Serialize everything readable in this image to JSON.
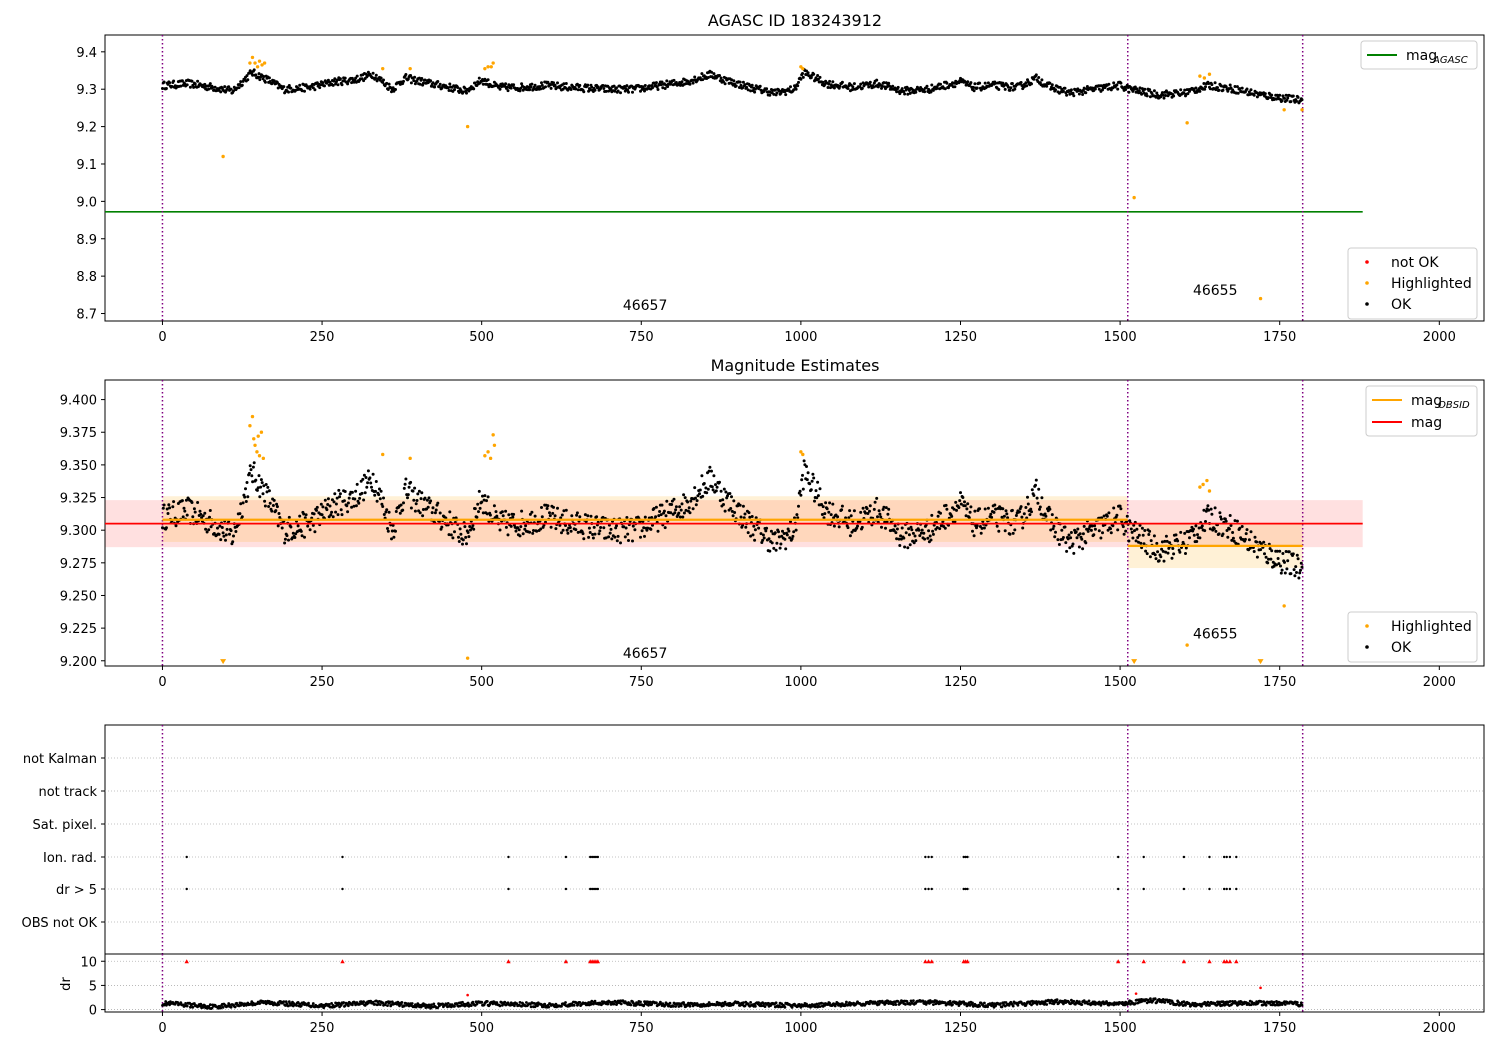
{
  "colors": {
    "ok": "#000000",
    "highlighted": "#ffa500",
    "not_ok": "#ff0000",
    "mag_agasc": "#008000",
    "mag_obsid": "#ffa500",
    "mag": "#ff0000",
    "obsid_line": "#800080"
  },
  "chart_data": [
    {
      "type": "scatter",
      "title": "AGASC ID 183243912",
      "xlim": [
        -90,
        2070
      ],
      "ylim": [
        8.68,
        9.445
      ],
      "x_ticks": [
        0,
        250,
        500,
        750,
        1000,
        1250,
        1500,
        1750,
        2000
      ],
      "y_ticks": [
        {
          "v": 8.7,
          "label": "8.7"
        },
        {
          "v": 8.8,
          "label": "8.8"
        },
        {
          "v": 8.9,
          "label": "8.9"
        },
        {
          "v": 9.0,
          "label": "9.0"
        },
        {
          "v": 9.1,
          "label": "9.1"
        },
        {
          "v": 9.2,
          "label": "9.2"
        },
        {
          "v": 9.3,
          "label": "9.3"
        },
        {
          "v": 9.4,
          "label": "9.4"
        }
      ],
      "obsid_boundaries": [
        0,
        1512,
        1786
      ],
      "obsid_labels": [
        {
          "text": "46657",
          "x": 756,
          "y": 8.71
        },
        {
          "text": "46655",
          "x": 1649,
          "y": 8.75
        }
      ],
      "mag_agasc": {
        "value": 8.972,
        "x": [
          -90,
          1880
        ]
      },
      "legend_lines": [
        {
          "label": "mag",
          "sub": "AGASC",
          "color_key": "mag_agasc"
        }
      ],
      "legend_points": [
        {
          "label": "not OK",
          "color_key": "not_ok"
        },
        {
          "label": "Highlighted",
          "color_key": "highlighted"
        },
        {
          "label": "OK",
          "color_key": "ok"
        }
      ],
      "series": [
        {
          "name": "OK",
          "mag_knots": [
            [
              0,
              9.31
            ],
            [
              40,
              9.315
            ],
            [
              80,
              9.305
            ],
            [
              110,
              9.295
            ],
            [
              140,
              9.345
            ],
            [
              165,
              9.325
            ],
            [
              190,
              9.3
            ],
            [
              230,
              9.305
            ],
            [
              270,
              9.32
            ],
            [
              300,
              9.325
            ],
            [
              330,
              9.34
            ],
            [
              360,
              9.3
            ],
            [
              380,
              9.33
            ],
            [
              420,
              9.315
            ],
            [
              450,
              9.305
            ],
            [
              475,
              9.295
            ],
            [
              500,
              9.325
            ],
            [
              525,
              9.305
            ],
            [
              560,
              9.305
            ],
            [
              600,
              9.31
            ],
            [
              640,
              9.305
            ],
            [
              700,
              9.3
            ],
            [
              740,
              9.3
            ],
            [
              780,
              9.31
            ],
            [
              820,
              9.32
            ],
            [
              860,
              9.34
            ],
            [
              880,
              9.325
            ],
            [
              920,
              9.305
            ],
            [
              960,
              9.29
            ],
            [
              990,
              9.3
            ],
            [
              1005,
              9.345
            ],
            [
              1040,
              9.315
            ],
            [
              1080,
              9.305
            ],
            [
              1120,
              9.315
            ],
            [
              1160,
              9.295
            ],
            [
              1200,
              9.3
            ],
            [
              1250,
              9.32
            ],
            [
              1270,
              9.305
            ],
            [
              1300,
              9.31
            ],
            [
              1340,
              9.305
            ],
            [
              1370,
              9.33
            ],
            [
              1385,
              9.31
            ],
            [
              1420,
              9.29
            ],
            [
              1460,
              9.3
            ],
            [
              1500,
              9.31
            ],
            [
              1515,
              9.3
            ],
            [
              1560,
              9.285
            ],
            [
              1600,
              9.29
            ],
            [
              1640,
              9.31
            ],
            [
              1680,
              9.3
            ],
            [
              1720,
              9.285
            ],
            [
              1760,
              9.275
            ],
            [
              1786,
              9.27
            ]
          ],
          "noise": 0.01
        },
        {
          "name": "Highlighted",
          "points": [
            [
              95,
              9.12
            ],
            [
              137,
              9.37
            ],
            [
              141,
              9.385
            ],
            [
              145,
              9.37
            ],
            [
              149,
              9.36
            ],
            [
              152,
              9.375
            ],
            [
              156,
              9.365
            ],
            [
              160,
              9.37
            ],
            [
              345,
              9.355
            ],
            [
              388,
              9.355
            ],
            [
              478,
              9.2
            ],
            [
              505,
              9.355
            ],
            [
              510,
              9.36
            ],
            [
              515,
              9.36
            ],
            [
              518,
              9.37
            ],
            [
              1000,
              9.36
            ],
            [
              1003,
              9.355
            ],
            [
              1522,
              9.01
            ],
            [
              1605,
              9.21
            ],
            [
              1625,
              9.335
            ],
            [
              1632,
              9.33
            ],
            [
              1640,
              9.34
            ],
            [
              1720,
              8.74
            ],
            [
              1757,
              9.245
            ],
            [
              1785,
              9.245
            ]
          ]
        }
      ]
    },
    {
      "type": "scatter",
      "title": "Magnitude Estimates",
      "xlim": [
        -90,
        2070
      ],
      "ylim": [
        9.196,
        9.415
      ],
      "x_ticks": [
        0,
        250,
        500,
        750,
        1000,
        1250,
        1500,
        1750,
        2000
      ],
      "y_ticks": [
        {
          "v": 9.2,
          "label": "9.200"
        },
        {
          "v": 9.225,
          "label": "9.225"
        },
        {
          "v": 9.25,
          "label": "9.250"
        },
        {
          "v": 9.275,
          "label": "9.275"
        },
        {
          "v": 9.3,
          "label": "9.300"
        },
        {
          "v": 9.325,
          "label": "9.325"
        },
        {
          "v": 9.35,
          "label": "9.350"
        },
        {
          "v": 9.375,
          "label": "9.375"
        },
        {
          "v": 9.4,
          "label": "9.400"
        }
      ],
      "obsid_boundaries": [
        0,
        1512,
        1786
      ],
      "obsid_labels": [
        {
          "text": "46657",
          "x": 756,
          "y": 9.202
        },
        {
          "text": "46655",
          "x": 1649,
          "y": 9.217
        }
      ],
      "mag": {
        "value": 9.305,
        "band": [
          9.287,
          9.323
        ],
        "x": [
          -90,
          1880
        ]
      },
      "mag_obsid": [
        {
          "x": [
            0,
            1512
          ],
          "value": 9.308,
          "band": [
            9.291,
            9.326
          ]
        },
        {
          "x": [
            1512,
            1786
          ],
          "value": 9.288,
          "band": [
            9.271,
            9.305
          ]
        }
      ],
      "legend_lines": [
        {
          "label": "mag",
          "sub": "OBSID",
          "color_key": "mag_obsid"
        },
        {
          "label": "mag",
          "sub": "",
          "color_key": "mag"
        }
      ],
      "legend_points": [
        {
          "label": "Highlighted",
          "color_key": "highlighted"
        },
        {
          "label": "OK",
          "color_key": "ok"
        }
      ],
      "series": [
        {
          "name": "OK",
          "mag_knots": [
            [
              0,
              9.31
            ],
            [
              40,
              9.315
            ],
            [
              80,
              9.305
            ],
            [
              110,
              9.295
            ],
            [
              140,
              9.345
            ],
            [
              165,
              9.325
            ],
            [
              190,
              9.3
            ],
            [
              230,
              9.305
            ],
            [
              270,
              9.32
            ],
            [
              300,
              9.325
            ],
            [
              330,
              9.34
            ],
            [
              360,
              9.3
            ],
            [
              380,
              9.33
            ],
            [
              420,
              9.315
            ],
            [
              450,
              9.305
            ],
            [
              475,
              9.295
            ],
            [
              500,
              9.325
            ],
            [
              525,
              9.305
            ],
            [
              560,
              9.305
            ],
            [
              600,
              9.31
            ],
            [
              640,
              9.305
            ],
            [
              700,
              9.3
            ],
            [
              740,
              9.3
            ],
            [
              780,
              9.31
            ],
            [
              820,
              9.32
            ],
            [
              860,
              9.34
            ],
            [
              880,
              9.325
            ],
            [
              920,
              9.305
            ],
            [
              960,
              9.29
            ],
            [
              990,
              9.3
            ],
            [
              1005,
              9.345
            ],
            [
              1040,
              9.315
            ],
            [
              1080,
              9.305
            ],
            [
              1120,
              9.315
            ],
            [
              1160,
              9.295
            ],
            [
              1200,
              9.3
            ],
            [
              1250,
              9.32
            ],
            [
              1270,
              9.305
            ],
            [
              1300,
              9.31
            ],
            [
              1340,
              9.305
            ],
            [
              1370,
              9.33
            ],
            [
              1385,
              9.31
            ],
            [
              1420,
              9.29
            ],
            [
              1460,
              9.3
            ],
            [
              1500,
              9.31
            ],
            [
              1515,
              9.3
            ],
            [
              1560,
              9.285
            ],
            [
              1600,
              9.29
            ],
            [
              1640,
              9.31
            ],
            [
              1680,
              9.3
            ],
            [
              1720,
              9.285
            ],
            [
              1760,
              9.275
            ],
            [
              1786,
              9.27
            ]
          ],
          "noise": 0.01
        },
        {
          "name": "Highlighted",
          "points": [
            [
              137,
              9.38
            ],
            [
              141,
              9.387
            ],
            [
              143,
              9.37
            ],
            [
              145,
              9.365
            ],
            [
              148,
              9.36
            ],
            [
              150,
              9.372
            ],
            [
              152,
              9.357
            ],
            [
              155,
              9.375
            ],
            [
              158,
              9.355
            ],
            [
              345,
              9.358
            ],
            [
              388,
              9.355
            ],
            [
              478,
              9.202
            ],
            [
              505,
              9.357
            ],
            [
              510,
              9.36
            ],
            [
              514,
              9.355
            ],
            [
              518,
              9.373
            ],
            [
              520,
              9.365
            ],
            [
              1000,
              9.36
            ],
            [
              1003,
              9.358
            ],
            [
              1605,
              9.212
            ],
            [
              1625,
              9.333
            ],
            [
              1630,
              9.335
            ],
            [
              1636,
              9.338
            ],
            [
              1640,
              9.33
            ],
            [
              1757,
              9.242
            ]
          ]
        },
        {
          "name": "Highlighted-offscale",
          "points": [
            [
              95,
              9.199
            ],
            [
              1522,
              9.199
            ],
            [
              1720,
              9.199
            ]
          ]
        }
      ]
    },
    {
      "type": "scatter",
      "title": "",
      "xlim": [
        -90,
        2070
      ],
      "categories": [
        "not Kalman",
        "not track",
        "Sat. pixel.",
        "Ion. rad.",
        "dr > 5",
        "OBS not OK"
      ],
      "obsid_boundaries": [
        0,
        1512,
        1786
      ],
      "flag_times": [
        38,
        282,
        542,
        632,
        670,
        673,
        676,
        679,
        682,
        1195,
        1200,
        1205,
        1255,
        1258,
        1261,
        1497,
        1537,
        1600,
        1640,
        1663,
        1667,
        1672,
        1682
      ],
      "flags": {
        "Ion. rad.": "flag_times",
        "dr > 5": "flag_times"
      }
    },
    {
      "type": "scatter",
      "title": "",
      "ylabel": "dr",
      "xlim": [
        -90,
        2070
      ],
      "ylim": [
        -0.5,
        11.5
      ],
      "x_ticks": [
        0,
        250,
        500,
        750,
        1000,
        1250,
        1500,
        1750,
        2000
      ],
      "y_ticks": [
        {
          "v": 0,
          "label": "0"
        },
        {
          "v": 5,
          "label": "5"
        },
        {
          "v": 10,
          "label": "10"
        }
      ],
      "obsid_boundaries": [
        0,
        1512,
        1786
      ],
      "capped_value": 10,
      "dr_knots": [
        [
          0,
          1.3
        ],
        [
          80,
          0.6
        ],
        [
          160,
          1.5
        ],
        [
          250,
          0.8
        ],
        [
          330,
          1.4
        ],
        [
          420,
          0.7
        ],
        [
          500,
          1.3
        ],
        [
          600,
          0.9
        ],
        [
          700,
          1.5
        ],
        [
          800,
          1.0
        ],
        [
          900,
          1.2
        ],
        [
          1000,
          0.8
        ],
        [
          1100,
          1.3
        ],
        [
          1200,
          1.5
        ],
        [
          1300,
          0.9
        ],
        [
          1400,
          1.6
        ],
        [
          1500,
          1.2
        ],
        [
          1550,
          1.9
        ],
        [
          1620,
          1.0
        ],
        [
          1700,
          1.4
        ],
        [
          1786,
          1.1
        ]
      ],
      "dr_highlighted": [
        [
          478,
          3.0
        ],
        [
          1525,
          3.3
        ],
        [
          1720,
          4.5
        ]
      ]
    }
  ]
}
